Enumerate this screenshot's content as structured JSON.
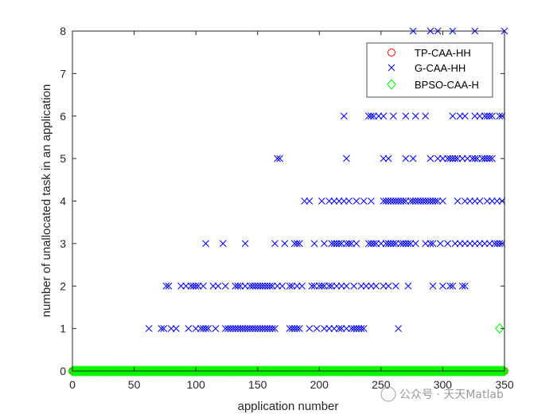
{
  "chart_data": {
    "type": "scatter",
    "xlabel": "application number",
    "ylabel": "number of unallocated task in an application",
    "xlim": [
      0,
      350
    ],
    "ylim": [
      0,
      8
    ],
    "xticks": [
      "0",
      "50",
      "100",
      "150",
      "200",
      "250",
      "300",
      "350"
    ],
    "yticks": [
      "0",
      "1",
      "2",
      "3",
      "4",
      "5",
      "6",
      "7",
      "8"
    ],
    "legend_position": "top-right",
    "series": [
      {
        "name": "TP-CAA-HH",
        "marker": "circle",
        "color": "#ff0000",
        "x": [
          0,
          50,
          100,
          150,
          200,
          250,
          300,
          350
        ],
        "y": [
          0,
          0,
          0,
          0,
          0,
          0,
          0,
          0
        ]
      },
      {
        "name": "G-CAA-HH",
        "marker": "x",
        "color": "#0000ff",
        "x": [
          62,
          72,
          74,
          80,
          84,
          94,
          100,
          104,
          106,
          108,
          110,
          116,
          124,
          126,
          128,
          130,
          132,
          134,
          136,
          138,
          140,
          142,
          144,
          146,
          148,
          150,
          152,
          154,
          156,
          158,
          160,
          162,
          164,
          176,
          178,
          180,
          182,
          184,
          192,
          198,
          204,
          208,
          212,
          216,
          218,
          222,
          226,
          228,
          230,
          232,
          234,
          236,
          264,
          76,
          78,
          88,
          92,
          96,
          98,
          100,
          102,
          106,
          114,
          118,
          124,
          132,
          134,
          136,
          140,
          144,
          146,
          148,
          150,
          152,
          154,
          156,
          158,
          160,
          162,
          166,
          170,
          176,
          178,
          182,
          186,
          194,
          196,
          200,
          202,
          204,
          208,
          210,
          214,
          218,
          222,
          228,
          234,
          238,
          242,
          246,
          252,
          256,
          262,
          272,
          292,
          300,
          306,
          308,
          316,
          318,
          108,
          122,
          140,
          164,
          172,
          180,
          182,
          184,
          196,
          204,
          210,
          212,
          214,
          216,
          218,
          222,
          224,
          226,
          230,
          240,
          242,
          244,
          246,
          250,
          254,
          256,
          258,
          260,
          262,
          266,
          268,
          270,
          272,
          274,
          278,
          286,
          290,
          292,
          298,
          304,
          310,
          314,
          318,
          322,
          326,
          330,
          334,
          338,
          342,
          344,
          346,
          348,
          188,
          192,
          202,
          208,
          212,
          216,
          220,
          224,
          230,
          236,
          242,
          252,
          254,
          256,
          258,
          260,
          262,
          264,
          266,
          268,
          270,
          274,
          276,
          278,
          280,
          282,
          284,
          286,
          288,
          290,
          292,
          294,
          296,
          300,
          312,
          318,
          322,
          326,
          330,
          336,
          340,
          344,
          348,
          166,
          168,
          222,
          252,
          256,
          270,
          276,
          290,
          296,
          300,
          304,
          306,
          308,
          310,
          312,
          316,
          320,
          324,
          326,
          328,
          332,
          334,
          336,
          338,
          340,
          220,
          240,
          242,
          244,
          248,
          252,
          260,
          270,
          278,
          286,
          308,
          314,
          318,
          326,
          330,
          334,
          336,
          338,
          340,
          346,
          348,
          276,
          290,
          296,
          308,
          326,
          350
        ],
        "y": [
          1,
          1,
          1,
          1,
          1,
          1,
          1,
          1,
          1,
          1,
          1,
          1,
          1,
          1,
          1,
          1,
          1,
          1,
          1,
          1,
          1,
          1,
          1,
          1,
          1,
          1,
          1,
          1,
          1,
          1,
          1,
          1,
          1,
          1,
          1,
          1,
          1,
          1,
          1,
          1,
          1,
          1,
          1,
          1,
          1,
          1,
          1,
          1,
          1,
          1,
          1,
          1,
          1,
          2,
          2,
          2,
          2,
          2,
          2,
          2,
          2,
          2,
          2,
          2,
          2,
          2,
          2,
          2,
          2,
          2,
          2,
          2,
          2,
          2,
          2,
          2,
          2,
          2,
          2,
          2,
          2,
          2,
          2,
          2,
          2,
          2,
          2,
          2,
          2,
          2,
          2,
          2,
          2,
          2,
          2,
          2,
          2,
          2,
          2,
          2,
          2,
          2,
          2,
          2,
          2,
          2,
          2,
          2,
          2,
          2,
          3,
          3,
          3,
          3,
          3,
          3,
          3,
          3,
          3,
          3,
          3,
          3,
          3,
          3,
          3,
          3,
          3,
          3,
          3,
          3,
          3,
          3,
          3,
          3,
          3,
          3,
          3,
          3,
          3,
          3,
          3,
          3,
          3,
          3,
          3,
          3,
          3,
          3,
          3,
          3,
          3,
          3,
          3,
          3,
          3,
          3,
          3,
          3,
          3,
          3,
          3,
          3,
          4,
          4,
          4,
          4,
          4,
          4,
          4,
          4,
          4,
          4,
          4,
          4,
          4,
          4,
          4,
          4,
          4,
          4,
          4,
          4,
          4,
          4,
          4,
          4,
          4,
          4,
          4,
          4,
          4,
          4,
          4,
          4,
          4,
          4,
          4,
          4,
          4,
          4,
          4,
          4,
          4,
          4,
          4,
          5,
          5,
          5,
          5,
          5,
          5,
          5,
          5,
          5,
          5,
          5,
          5,
          5,
          5,
          5,
          5,
          5,
          5,
          5,
          5,
          5,
          5,
          5,
          5,
          5,
          6,
          6,
          6,
          6,
          6,
          6,
          6,
          6,
          6,
          6,
          6,
          6,
          6,
          6,
          6,
          6,
          6,
          6,
          6,
          6,
          6,
          8,
          8,
          8,
          8,
          8,
          8
        ]
      },
      {
        "name": "BPSO-CAA-H",
        "marker": "diamond",
        "color": "#00ff00",
        "zero_line": true,
        "x": [
          346
        ],
        "y": [
          1
        ]
      }
    ]
  },
  "watermark": "公众号 · 天天Matlab"
}
